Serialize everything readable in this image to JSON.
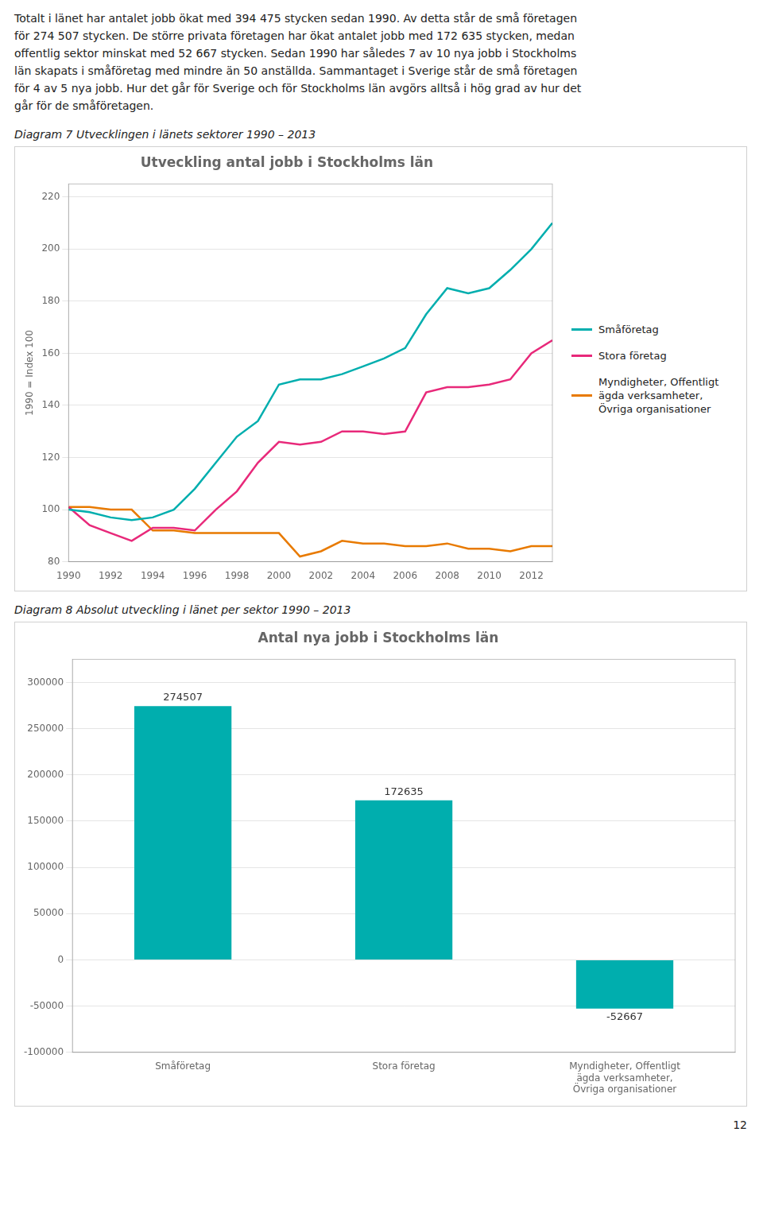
{
  "text": [
    "Totalt i länet har antalet jobb ökat med 394 475 stycken sedan 1990. Av detta står de små företagen",
    "för 274 507 stycken. De större privata företagen har ökat antalet jobb med 172 635 stycken, medan",
    "offentlig sektor minskat med 52 667 stycken. Sedan 1990 har således 7 av 10 nya jobb i Stockholms",
    "län skapats i småföretag med mindre än 50 anställda. Sammantaget i Sverige står de små företagen",
    "för 4 av 5 nya jobb. Hur det går för Sverige och för Stockholms län avgörs alltså i hög grad av hur det",
    "går för de småföretagen."
  ],
  "page_number": "12",
  "chart_data": [
    {
      "type": "line",
      "caption": "Diagram 7 Utvecklingen i länets sektorer 1990 – 2013",
      "title": "Utveckling antal jobb i Stockholms län",
      "ylabel": "1990 = Index 100",
      "x": [
        1990,
        1991,
        1992,
        1993,
        1994,
        1995,
        1996,
        1997,
        1998,
        1999,
        2000,
        2001,
        2002,
        2003,
        2004,
        2005,
        2006,
        2007,
        2008,
        2009,
        2010,
        2011,
        2012,
        2013
      ],
      "series": [
        {
          "name": "Småföretag",
          "color": "#00AEAE",
          "values": [
            100,
            99,
            97,
            96,
            97,
            100,
            108,
            118,
            128,
            134,
            148,
            150,
            150,
            152,
            155,
            158,
            162,
            175,
            185,
            183,
            185,
            192,
            200,
            210
          ]
        },
        {
          "name": "Stora företag",
          "color": "#E8297A",
          "values": [
            101,
            94,
            91,
            88,
            93,
            93,
            92,
            100,
            107,
            118,
            126,
            125,
            126,
            130,
            130,
            129,
            130,
            145,
            147,
            147,
            148,
            150,
            160,
            165
          ]
        },
        {
          "name": "Myndigheter, Offentligt\nägda verksamheter,\nÖvriga organisationer",
          "color": "#E87A00",
          "values": [
            101,
            101,
            100,
            100,
            92,
            92,
            91,
            91,
            91,
            91,
            91,
            82,
            84,
            88,
            87,
            87,
            86,
            86,
            87,
            85,
            85,
            84,
            86,
            86
          ]
        }
      ],
      "xlim": [
        1990,
        2013
      ],
      "xticks": [
        1990,
        1992,
        1994,
        1996,
        1998,
        2000,
        2002,
        2004,
        2006,
        2008,
        2010,
        2012
      ],
      "ylim": [
        80,
        225
      ],
      "yticks": [
        80,
        100,
        120,
        140,
        160,
        180,
        200,
        220
      ],
      "grid": "y",
      "legend": "right"
    },
    {
      "type": "bar",
      "caption": "Diagram 8 Absolut utveckling i länet per sektor 1990 – 2013",
      "title": "Antal nya jobb i Stockholms län",
      "categories": [
        "Småföretag",
        "Stora företag",
        "Myndigheter, Offentligt\nägda verksamheter,\nÖvriga organisationer"
      ],
      "values": [
        274507,
        172635,
        -52667
      ],
      "color": "#00AEAE",
      "ylim": [
        -100000,
        325000
      ],
      "yticks": [
        -100000,
        -50000,
        0,
        50000,
        100000,
        150000,
        200000,
        250000,
        300000
      ],
      "grid": "y",
      "data_labels": true
    }
  ]
}
